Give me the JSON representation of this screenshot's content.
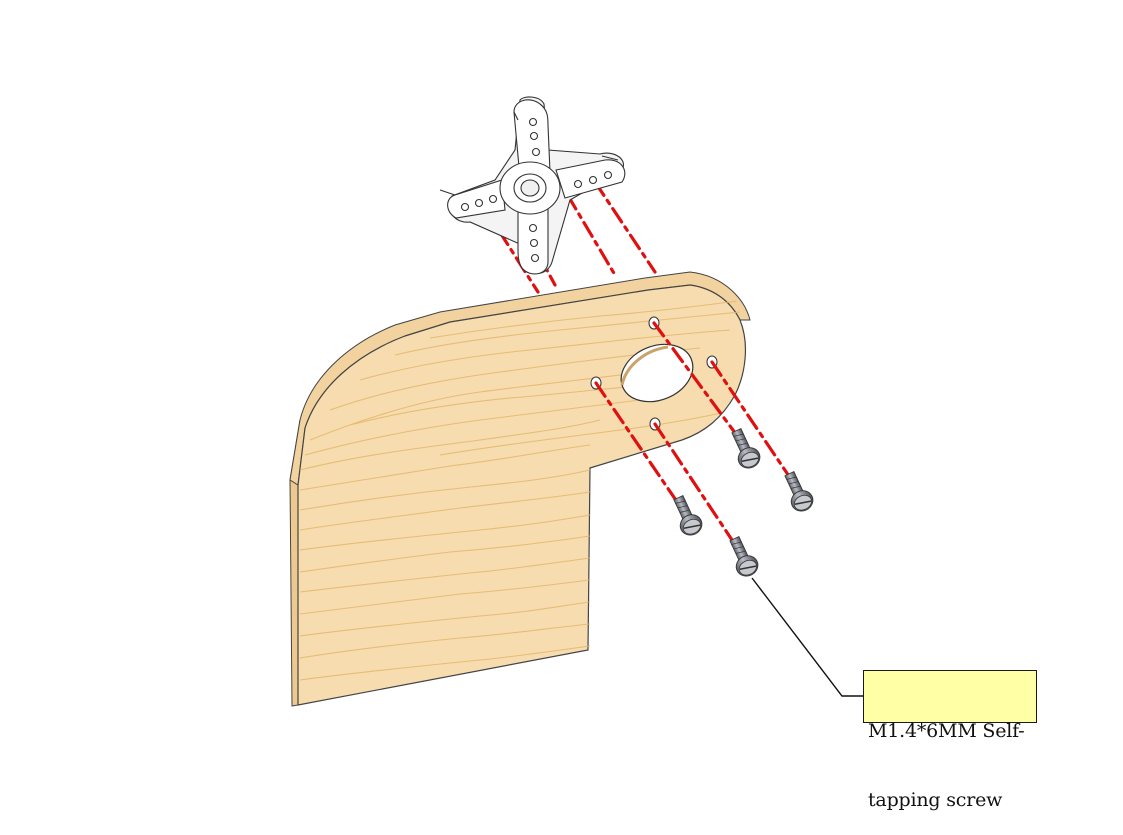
{
  "callout": {
    "line1": "M1.4*6MM Self-",
    "line2": "tapping screw"
  },
  "colors": {
    "wood_face": "#f5d9a8",
    "wood_edge": "#eec98f",
    "wood_grain": "#e6b970",
    "guide_line": "#e01010",
    "label_fill": "#ffffa6",
    "screw_metal": "#8a8d95"
  },
  "parts": {
    "servo_horn": "cross-servo-horn",
    "plate": "wooden-mounting-plate",
    "screws": "self-tapping-screw"
  }
}
